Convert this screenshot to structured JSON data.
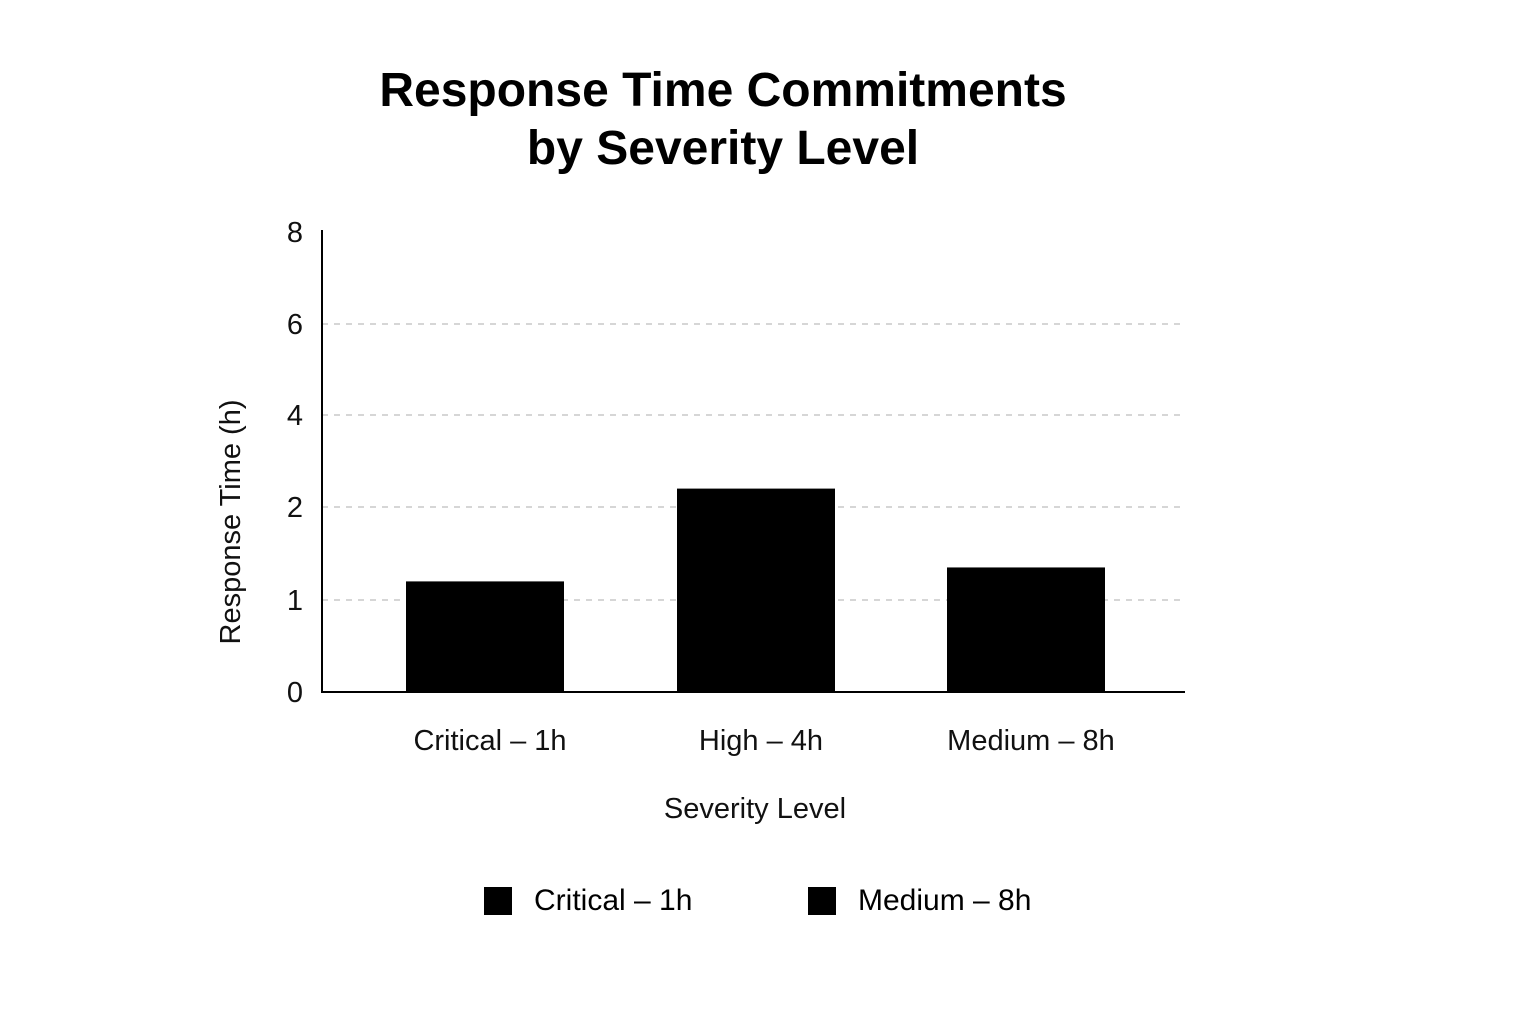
{
  "chart_data": {
    "type": "bar",
    "title": "Response Time Commitments by Severity Level",
    "title_lines": [
      "Response Time Commitments",
      "by Severity Level"
    ],
    "categories": [
      "Critical – 1h",
      "High – 4h",
      "Medium – 8h"
    ],
    "values": [
      1.2,
      2.4,
      1.35
    ],
    "ytick_labels": [
      "0",
      "1",
      "2",
      "4",
      "6",
      "8"
    ],
    "xlabel": "Severity Level",
    "ylabel": "Response Time (h)",
    "bar_color": "#000000",
    "grid_color": "#c8c8c8",
    "grid": true,
    "legend": {
      "position": "bottom",
      "items": [
        "Critical – 1h",
        "Medium – 8h"
      ]
    }
  }
}
